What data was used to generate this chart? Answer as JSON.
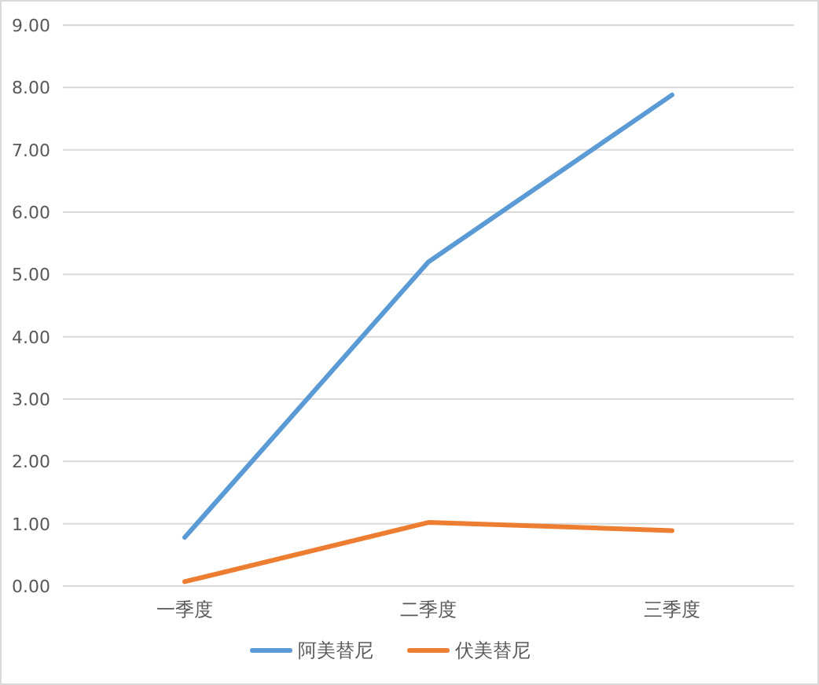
{
  "chart_data": {
    "type": "line",
    "categories": [
      "一季度",
      "二季度",
      "三季度"
    ],
    "series": [
      {
        "name": "阿美替尼",
        "color": "#5b9bd5",
        "values": [
          0.78,
          5.2,
          7.88
        ]
      },
      {
        "name": "伏美替尼",
        "color": "#ed7d31",
        "values": [
          0.07,
          1.02,
          0.89
        ]
      }
    ],
    "ylim": [
      0,
      9
    ],
    "yticks": [
      {
        "value": 0,
        "label": "0.00"
      },
      {
        "value": 1,
        "label": "1.00"
      },
      {
        "value": 2,
        "label": "2.00"
      },
      {
        "value": 3,
        "label": "3.00"
      },
      {
        "value": 4,
        "label": "4.00"
      },
      {
        "value": 5,
        "label": "5.00"
      },
      {
        "value": 6,
        "label": "6.00"
      },
      {
        "value": 7,
        "label": "7.00"
      },
      {
        "value": 8,
        "label": "8.00"
      },
      {
        "value": 9,
        "label": "9.00"
      }
    ],
    "grid": "y",
    "legend": "bottom",
    "marker": "none",
    "line_style": "solid"
  }
}
